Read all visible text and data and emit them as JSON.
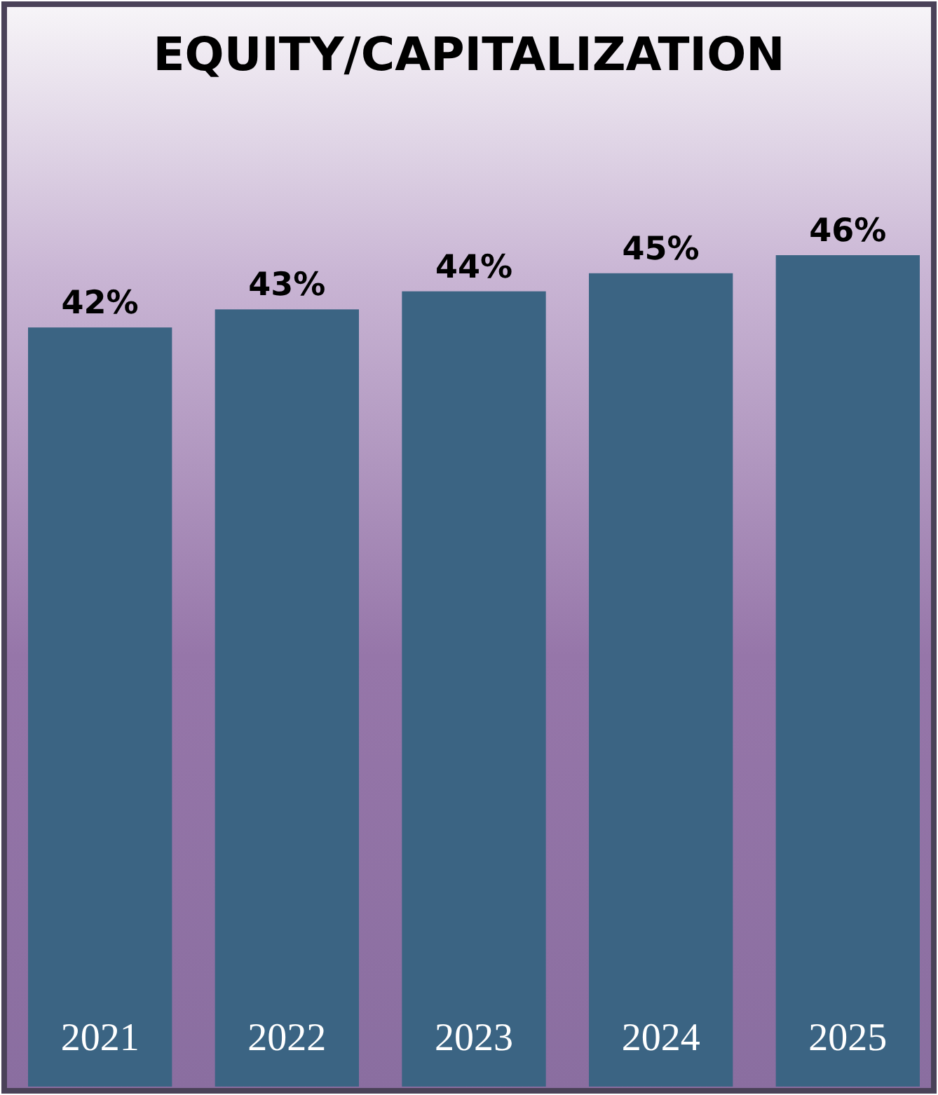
{
  "chart_data": {
    "type": "bar",
    "title": "EQUITY/CAPITALIZATION",
    "categories": [
      "2021",
      "2022",
      "2023",
      "2024",
      "2025"
    ],
    "values": [
      42,
      43,
      44,
      45,
      46
    ],
    "value_labels": [
      "42%",
      "43%",
      "44%",
      "45%",
      "46%"
    ],
    "color": "#3b6483"
  }
}
